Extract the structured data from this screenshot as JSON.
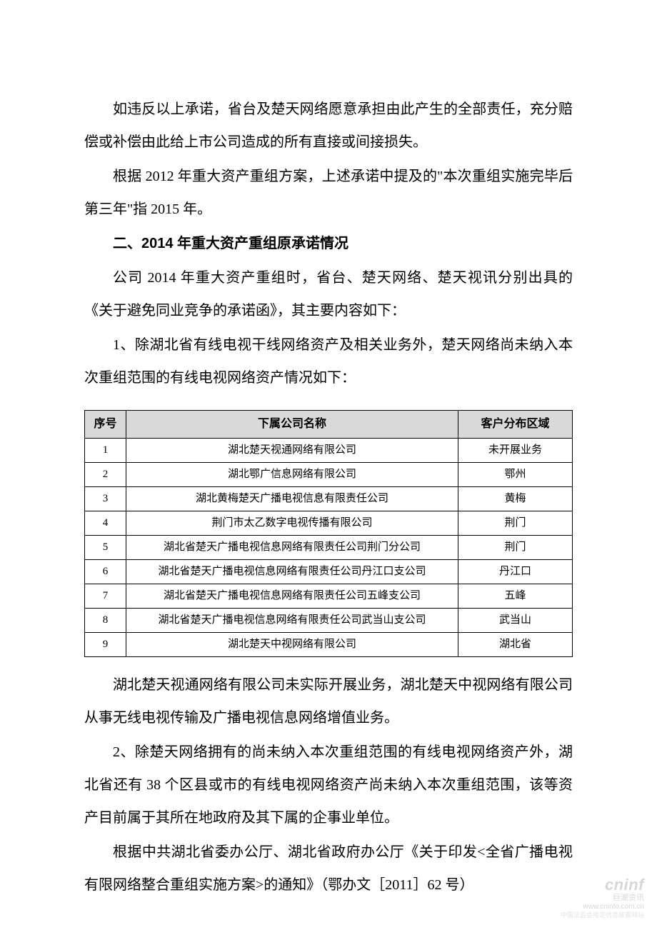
{
  "paragraphs": {
    "p1": "如违反以上承诺，省台及楚天网络愿意承担由此产生的全部责任，充分赔偿或补偿由此给上市公司造成的所有直接或间接损失。",
    "p2": "根据 2012 年重大资产重组方案，上述承诺中提及的\"本次重组实施完毕后第三年\"指 2015 年。",
    "p3": "二、2014 年重大资产重组原承诺情况",
    "p4": "公司 2014 年重大资产重组时，省台、楚天网络、楚天视讯分别出具的《关于避免同业竞争的承诺函》，其主要内容如下：",
    "p5": "1、除湖北省有线电视干线网络资产及相关业务外，楚天网络尚未纳入本次重组范围的有线电视网络资产情况如下：",
    "p6": "湖北楚天视通网络有限公司未实际开展业务，湖北楚天中视网络有限公司从事无线电视传输及广播电视信息网络增值业务。",
    "p7": "2、除楚天网络拥有的尚未纳入本次重组范围的有线电视网络资产外，湖北省还有 38 个区县或市的有线电视网络资产尚未纳入本次重组范围，该等资产目前属于其所在地政府及其下属的企事业单位。",
    "p8": "根据中共湖北省委办公厅、湖北省政府办公厅《关于印发<全省广播电视有限网络整合重组实施方案>的通知》（鄂办文［2011］62 号）"
  },
  "table": {
    "headers": {
      "idx": "序号",
      "name": "下属公司名称",
      "area": "客户分布区域"
    },
    "header_bg": "#d9d9d9",
    "border_color": "#000000",
    "rows": [
      {
        "idx": "1",
        "name": "湖北楚天视通网络有限公司",
        "area": "未开展业务"
      },
      {
        "idx": "2",
        "name": "湖北鄂广信息网络有限公司",
        "area": "鄂州"
      },
      {
        "idx": "3",
        "name": "湖北黄梅楚天广播电视信息有限责任公司",
        "area": "黄梅"
      },
      {
        "idx": "4",
        "name": "荆门市太乙数字电视传播有限公司",
        "area": "荆门"
      },
      {
        "idx": "5",
        "name": "湖北省楚天广播电视信息网络有限责任公司荆门分公司",
        "area": "荆门"
      },
      {
        "idx": "6",
        "name": "湖北省楚天广播电视信息网络有限责任公司丹江口支公司",
        "area": "丹江口"
      },
      {
        "idx": "7",
        "name": "湖北省楚天广播电视信息网络有限责任公司五峰支公司",
        "area": "五峰"
      },
      {
        "idx": "8",
        "name": "湖北省楚天广播电视信息网络有限责任公司武当山支公司",
        "area": "武当山"
      },
      {
        "idx": "9",
        "name": "湖北楚天中视网络有限公司",
        "area": "湖北省"
      }
    ]
  },
  "watermark": {
    "brand": "cninf",
    "cn": "巨潮资讯",
    "url": "www.cninfo.com.cn",
    "disclaimer": "中国证监会指定信息披露网站"
  },
  "styles": {
    "body_font_size": 20,
    "table_font_size": 15,
    "header_font_size": 16,
    "text_color": "#000000",
    "background": "#ffffff",
    "watermark_color": "#d7d7d7"
  }
}
